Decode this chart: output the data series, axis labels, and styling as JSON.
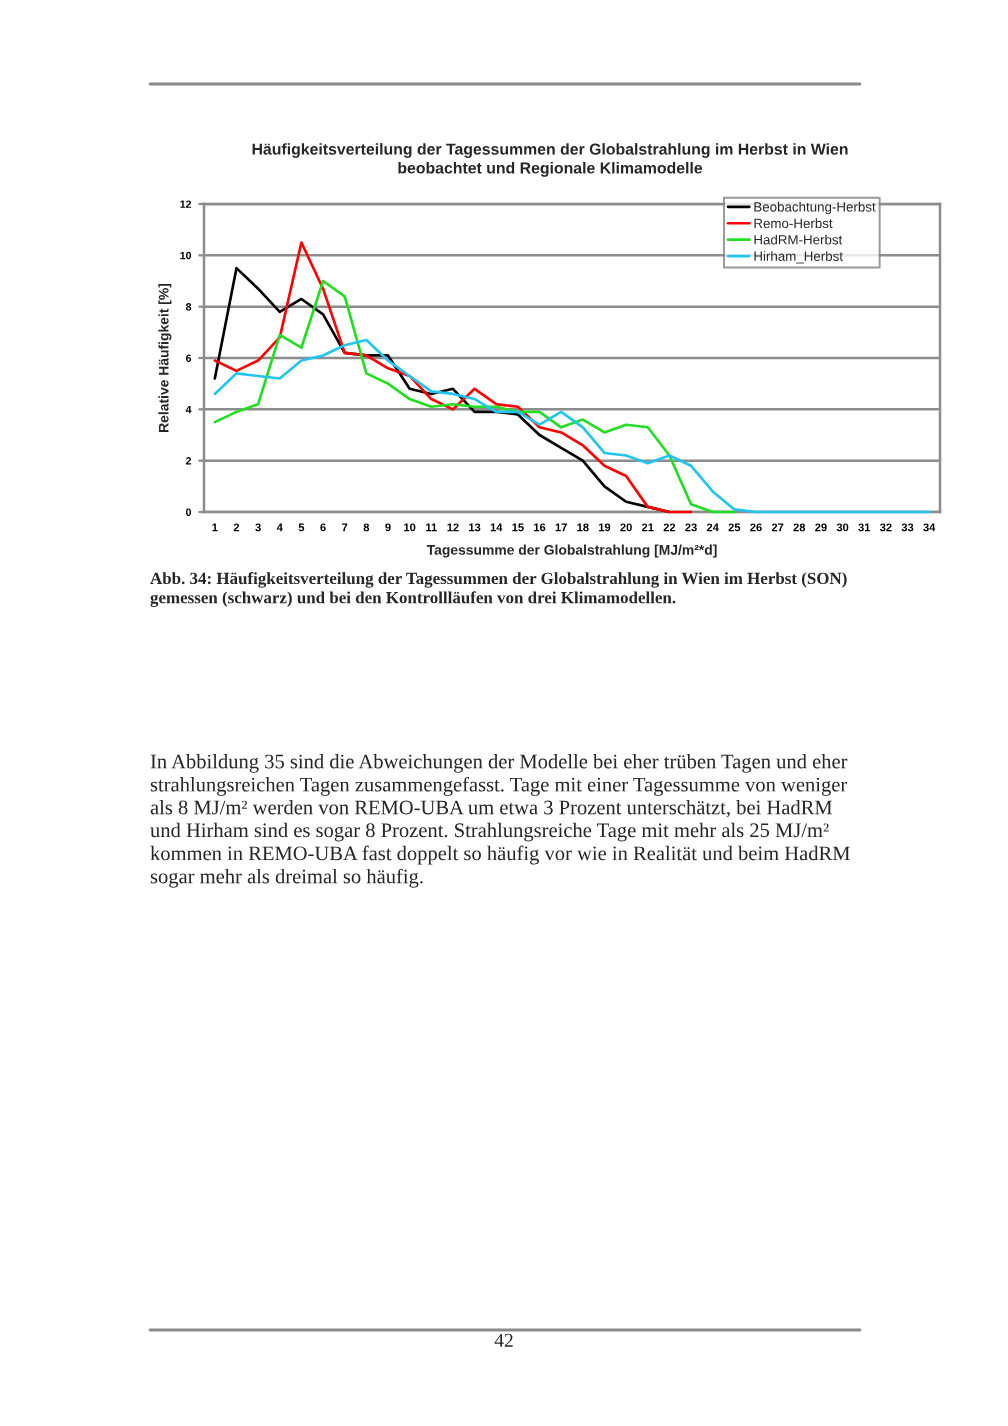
{
  "chart_data": {
    "type": "line",
    "title": "Häufigkeitsverteilung der Tagessummen der Globalstrahlung im Herbst in Wien\nbeobachtet und Regionale Klimamodelle",
    "xlabel": "Tagessumme der Globalstrahlung [MJ/m²*d]",
    "ylabel": "Relative Häufigkeit [%]",
    "categories": [
      "1",
      "2",
      "3",
      "4",
      "5",
      "6",
      "7",
      "8",
      "9",
      "10",
      "11",
      "12",
      "13",
      "14",
      "15",
      "16",
      "17",
      "18",
      "19",
      "20",
      "21",
      "22",
      "23",
      "24",
      "25",
      "26",
      "27",
      "28",
      "29",
      "30",
      "31",
      "32",
      "33",
      "34"
    ],
    "series": [
      {
        "name": "Beobachtung-Herbst",
        "color": "#000000",
        "values": [
          5.2,
          9.5,
          8.7,
          7.8,
          8.3,
          7.7,
          6.2,
          6.1,
          6.1,
          4.8,
          4.6,
          4.8,
          3.9,
          3.9,
          3.8,
          3.0,
          2.5,
          2.0,
          1.0,
          0.4,
          0.2,
          0,
          null,
          null,
          null,
          null,
          null,
          null,
          null,
          null,
          null,
          null,
          null,
          null
        ]
      },
      {
        "name": "Remo-Herbst",
        "color": "#ff0000",
        "values": [
          5.9,
          5.5,
          5.9,
          6.8,
          10.5,
          8.7,
          6.2,
          6.1,
          5.6,
          5.3,
          4.4,
          4.0,
          4.8,
          4.2,
          4.1,
          3.3,
          3.1,
          2.6,
          1.8,
          1.4,
          0.2,
          0,
          0,
          null,
          null,
          null,
          null,
          null,
          null,
          null,
          null,
          null,
          null,
          null
        ]
      },
      {
        "name": "HadRM-Herbst",
        "color": "#22dd22",
        "values": [
          3.5,
          3.9,
          4.2,
          6.9,
          6.4,
          9.0,
          8.4,
          5.4,
          5.0,
          4.4,
          4.1,
          4.2,
          4.1,
          4.1,
          3.9,
          3.9,
          3.3,
          3.6,
          3.1,
          3.4,
          3.3,
          2.2,
          0.3,
          0,
          0,
          null,
          null,
          null,
          null,
          null,
          null,
          null,
          null,
          null
        ]
      },
      {
        "name": "Hirham_Herbst",
        "color": "#22c4f0",
        "values": [
          4.6,
          5.4,
          5.3,
          5.2,
          5.9,
          6.1,
          6.5,
          6.7,
          5.9,
          5.3,
          4.7,
          4.6,
          4.4,
          3.9,
          3.9,
          3.4,
          3.9,
          3.3,
          2.3,
          2.2,
          1.9,
          2.2,
          1.8,
          0.8,
          0.1,
          0,
          0,
          0,
          0,
          0,
          0,
          0,
          0,
          0
        ]
      }
    ],
    "ylim": [
      0,
      12
    ],
    "yticks": [
      0,
      2,
      4,
      6,
      8,
      10,
      12
    ],
    "grid": "y",
    "legend": "top right",
    "annotations": [
      "Abb. 34: Häufigkeitsverteilung der Tagessummen der Globalstrahlung in Wien im Herbst (SON)\ngemessen (schwarz) und bei den Kontrollläufen von drei Klimamodellen.",
      "In Abbildung 35 sind die Abweichungen der Modelle bei eher trüben Tagen und eher\nstrahlungsreichen Tagen zusammengefasst. Tage mit einer Tagessumme von weniger\nals 8 MJ/m² werden von REMO-UBA um etwa 3 Prozent unterschätzt, bei HadRM\nund Hirham sind es sogar 8 Prozent. Strahlungsreiche Tage mit mehr als 25 MJ/m²\nkommen in REMO-UBA fast doppelt so häufig vor wie in Realität und beim HadRM\nsogar mehr als dreimal so häufig.",
      "42"
    ]
  }
}
